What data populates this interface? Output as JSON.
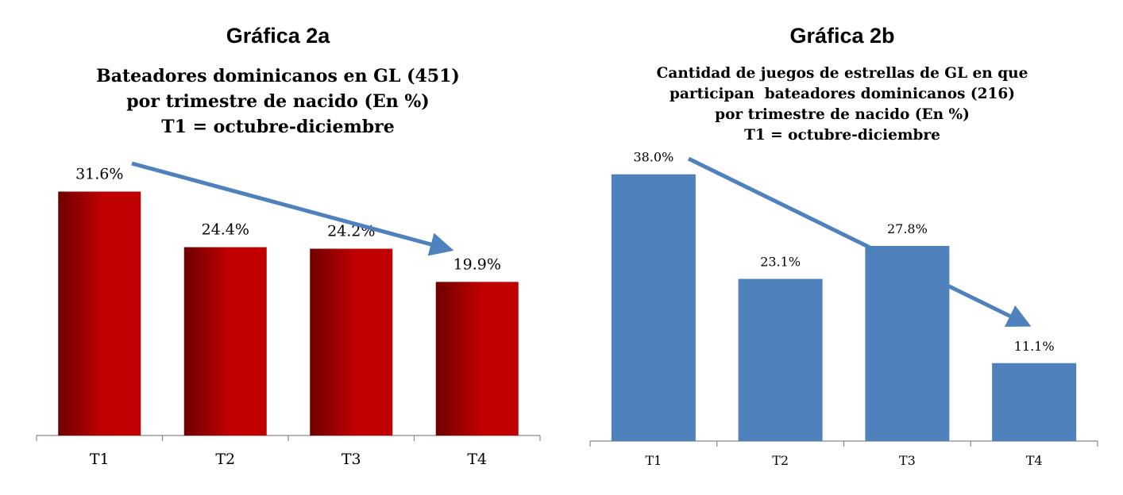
{
  "charts": [
    {
      "heading": "Gráfica 2a",
      "subtitle_lines": [
        "Bateadores dominicanos en GL (451)",
        "por trimestre de nacido (En %)",
        "T1 = octubre-diciembre"
      ]
    },
    {
      "heading": "Gráfica 2b",
      "subtitle_lines": [
        "Cantidad de juegos de estrellas de GL en que",
        "participan  bateadores dominicanos (216)",
        "por trimestre de nacido (En %)",
        "T1 = octubre-diciembre"
      ]
    }
  ],
  "chart_data": [
    {
      "type": "bar",
      "title": "Gráfica 2a",
      "subtitle": "Bateadores dominicanos en GL (451) por trimestre de nacido (En %) T1 = octubre-diciembre",
      "categories": [
        "T1",
        "T2",
        "T3",
        "T4"
      ],
      "values": [
        31.6,
        24.4,
        24.2,
        19.9
      ],
      "data_labels": [
        "31.6%",
        "24.4%",
        "24.2%",
        "19.9%"
      ],
      "bar_color": "#c00000",
      "bar_gradient_dark": "#6e0000",
      "arrow_color": "#4f81bd",
      "ylim": [
        0,
        40
      ],
      "grid": false
    },
    {
      "type": "bar",
      "title": "Gráfica 2b",
      "subtitle": "Cantidad de juegos de estrellas de GL en que participan  bateadores dominicanos (216) por trimestre de nacido (En %) T1 = octubre-diciembre",
      "categories": [
        "T1",
        "T2",
        "T3",
        "T4"
      ],
      "values": [
        38.0,
        23.1,
        27.8,
        11.1
      ],
      "data_labels": [
        "38.0%",
        "23.1%",
        "27.8%",
        "11.1%"
      ],
      "bar_color": "#4f81bd",
      "arrow_color": "#4f81bd",
      "ylim": [
        0,
        40
      ],
      "grid": false
    }
  ]
}
